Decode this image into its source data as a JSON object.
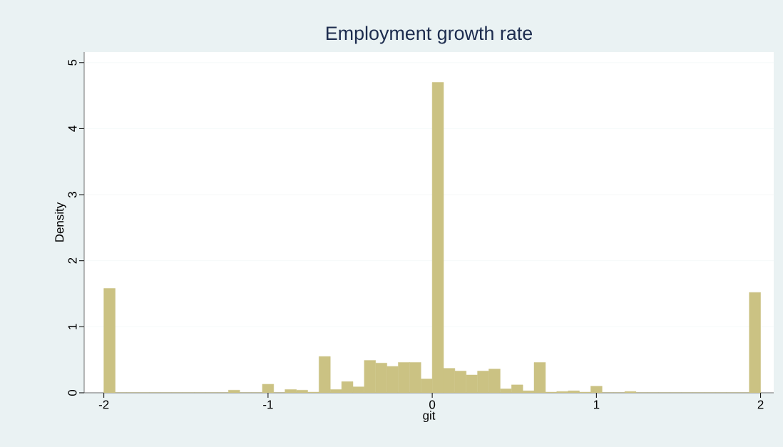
{
  "chart_data": {
    "type": "histogram",
    "title": "Employment growth rate",
    "xlabel": "git",
    "ylabel": "Density",
    "bins": [
      -2,
      -1.931,
      -1.8621,
      -1.7931,
      -1.7241,
      -1.6552,
      -1.5862,
      -1.5172,
      -1.4483,
      -1.3793,
      -1.3103,
      -1.2414,
      -1.1724,
      -1.1034,
      -1.0345,
      -0.9655,
      -0.8966,
      -0.8276,
      -0.7586,
      -0.6897,
      -0.6207,
      -0.5517,
      -0.4828,
      -0.4138,
      -0.3448,
      -0.2759,
      -0.2069,
      -0.1379,
      -0.069,
      0,
      0.069,
      0.1379,
      0.2069,
      0.2759,
      0.3448,
      0.4138,
      0.4828,
      0.5517,
      0.6207,
      0.6897,
      0.7586,
      0.8276,
      0.8966,
      0.9655,
      1.0345,
      1.1034,
      1.1724,
      1.2414,
      1.3103,
      1.3793,
      1.4483,
      1.5172,
      1.5862,
      1.6552,
      1.7241,
      1.7931,
      1.8621,
      1.931,
      2
    ],
    "values": [
      1.58,
      0,
      0,
      0,
      0,
      0,
      0,
      0,
      0,
      0,
      0,
      0.04,
      0,
      0,
      0.13,
      0,
      0.05,
      0.04,
      0.01,
      0.55,
      0.05,
      0.17,
      0.09,
      0.49,
      0.45,
      0.4,
      0.46,
      0.46,
      0.21,
      4.7,
      0.37,
      0.33,
      0.27,
      0.33,
      0.36,
      0.06,
      0.12,
      0.03,
      0.46,
      0.01,
      0.02,
      0.03,
      0.01,
      0.1,
      0,
      0,
      0.02,
      0,
      0,
      0,
      0,
      0,
      0,
      0,
      0,
      0,
      0,
      1.52
    ],
    "color": "#cbc283",
    "xlim": [
      -2.12,
      2.08
    ],
    "ylim": [
      0,
      5.16
    ],
    "xticks": [
      -2,
      -1,
      0,
      1,
      2
    ],
    "yticks": [
      0,
      1,
      2,
      3,
      4,
      5
    ],
    "grid": "y"
  }
}
